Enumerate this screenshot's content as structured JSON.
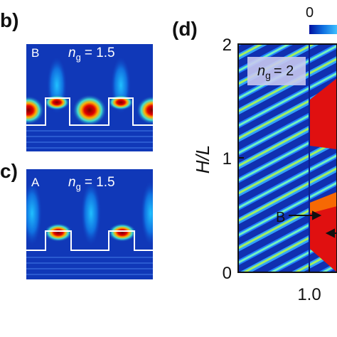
{
  "panels": [
    {
      "label": "b)",
      "inset_label": "B",
      "ng": {
        "symbol": "n",
        "subscript": "g",
        "value": "= 1.5"
      }
    },
    {
      "label": "c)",
      "inset_label": "A",
      "ng": {
        "symbol": "n",
        "subscript": "g",
        "value": "= 1.5"
      }
    },
    {
      "label": "(d)",
      "colorbar_tick": "0",
      "y_axis_label": "H/L",
      "yticks": [
        "2",
        "1",
        "0"
      ],
      "xticks": [
        "1.0"
      ],
      "ng": {
        "symbol": "n",
        "subscript": "g",
        "value": "= 2"
      },
      "annotation": "B"
    }
  ]
}
